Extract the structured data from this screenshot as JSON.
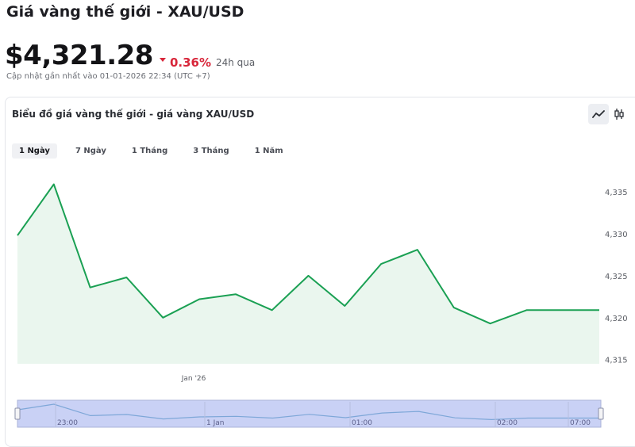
{
  "header": {
    "title": "Giá vàng thế giới - XAU/USD",
    "price": "$4,321.28",
    "change_pct": "0.36%",
    "change_period": "24h qua",
    "updated": "Cập nhật gần nhất vào 01-01-2026 22:34 (UTC +7)"
  },
  "chart_card": {
    "title": "Biểu đồ giá vàng thế giới - giá vàng XAU/USD",
    "range_tabs": [
      "1 Ngày",
      "7 Ngày",
      "1 Tháng",
      "3 Tháng",
      "1 Năm"
    ],
    "active_tab": "1 Ngày",
    "chart_types": [
      "line-chart-icon",
      "candlestick-icon"
    ],
    "active_chart_type": "line-chart-icon"
  },
  "colors": {
    "line": "#1aa053",
    "fill": "#eaf6ee",
    "negative": "#d8263a",
    "navigator_fill": "#c9d1f5",
    "navigator_line": "#7ea7d8"
  },
  "chart_data": {
    "type": "line",
    "title": "",
    "x": [
      0,
      1,
      2,
      3,
      4,
      5,
      6,
      7,
      8,
      9,
      10,
      11,
      12,
      13,
      14,
      15,
      16
    ],
    "values": [
      4329.8,
      4335.9,
      4323.6,
      4324.8,
      4320.0,
      4322.2,
      4322.8,
      4320.9,
      4325.0,
      4321.4,
      4326.4,
      4328.1,
      4321.2,
      4319.3,
      4320.9,
      4320.9,
      4320.9
    ],
    "ylim": [
      4314.5,
      4338.5
    ],
    "yticks": [
      4315,
      4320,
      4325,
      4330,
      4335
    ],
    "ytick_labels": [
      "4,315",
      "4,320",
      "4,325",
      "4,330",
      "4,335"
    ],
    "xtick_labels": [
      {
        "x": 5,
        "label": "Jan '26"
      }
    ],
    "navigator_ticks": [
      "23:00",
      "1 Jan",
      "01:00",
      "02:00",
      "07:00"
    ],
    "grid": false,
    "legend": "none"
  }
}
